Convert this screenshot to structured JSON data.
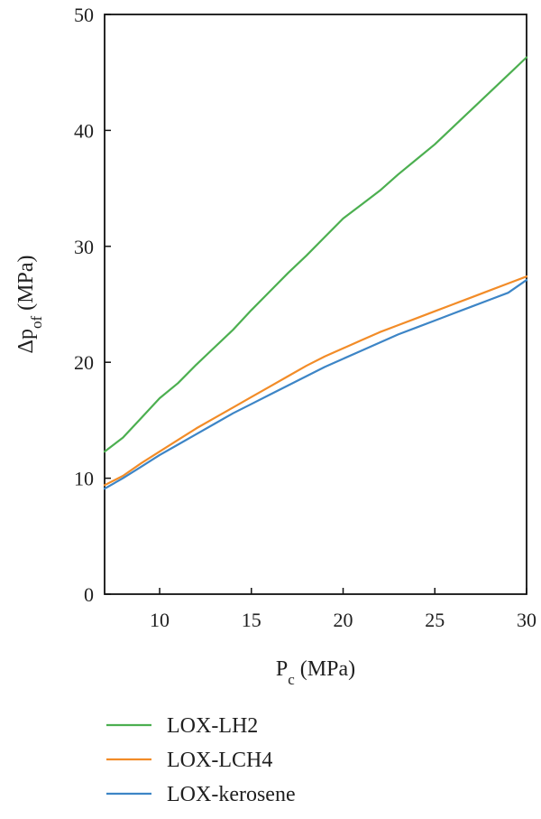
{
  "chart_data": {
    "type": "line",
    "xlabel": {
      "main": "P",
      "sub": "c",
      "unit": " (MPa)"
    },
    "ylabel": {
      "prefix": "Δp",
      "sub": "of",
      "unit": " (MPa)"
    },
    "xlim": [
      7,
      30
    ],
    "ylim": [
      0,
      50
    ],
    "x_ticks": [
      10,
      15,
      20,
      25,
      30
    ],
    "y_ticks": [
      0,
      10,
      20,
      30,
      40,
      50
    ],
    "grid": false,
    "legend_position": "bottom-left",
    "series": [
      {
        "name": "LOX-LH2",
        "color": "#4caf50",
        "points": [
          [
            7,
            12.3
          ],
          [
            8,
            13.5
          ],
          [
            9,
            15.2
          ],
          [
            10,
            16.9
          ],
          [
            11,
            18.2
          ],
          [
            12,
            19.8
          ],
          [
            13,
            21.3
          ],
          [
            14,
            22.8
          ],
          [
            15,
            24.5
          ],
          [
            16,
            26.1
          ],
          [
            17,
            27.7
          ],
          [
            18,
            29.2
          ],
          [
            19,
            30.8
          ],
          [
            20,
            32.4
          ],
          [
            21,
            33.6
          ],
          [
            22,
            34.8
          ],
          [
            23,
            36.2
          ],
          [
            24,
            37.5
          ],
          [
            25,
            38.8
          ],
          [
            26,
            40.3
          ],
          [
            27,
            41.8
          ],
          [
            28,
            43.3
          ],
          [
            29,
            44.8
          ],
          [
            30,
            46.3
          ]
        ]
      },
      {
        "name": "LOX-LCH4",
        "color": "#f28c28",
        "points": [
          [
            7,
            9.4
          ],
          [
            8,
            10.2
          ],
          [
            9,
            11.3
          ],
          [
            10,
            12.3
          ],
          [
            11,
            13.3
          ],
          [
            12,
            14.3
          ],
          [
            13,
            15.2
          ],
          [
            14,
            16.1
          ],
          [
            15,
            17.0
          ],
          [
            16,
            17.9
          ],
          [
            17,
            18.8
          ],
          [
            18,
            19.7
          ],
          [
            19,
            20.5
          ],
          [
            20,
            21.2
          ],
          [
            21,
            21.9
          ],
          [
            22,
            22.6
          ],
          [
            23,
            23.2
          ],
          [
            24,
            23.8
          ],
          [
            25,
            24.4
          ],
          [
            26,
            25.0
          ],
          [
            27,
            25.6
          ],
          [
            28,
            26.2
          ],
          [
            29,
            26.8
          ],
          [
            30,
            27.4
          ]
        ]
      },
      {
        "name": "LOX-kerosene",
        "color": "#3d85c6",
        "points": [
          [
            7,
            9.1
          ],
          [
            8,
            10.0
          ],
          [
            9,
            11.0
          ],
          [
            10,
            12.0
          ],
          [
            11,
            12.9
          ],
          [
            12,
            13.8
          ],
          [
            13,
            14.7
          ],
          [
            14,
            15.6
          ],
          [
            15,
            16.4
          ],
          [
            16,
            17.2
          ],
          [
            17,
            18.0
          ],
          [
            18,
            18.8
          ],
          [
            19,
            19.6
          ],
          [
            20,
            20.3
          ],
          [
            21,
            21.0
          ],
          [
            22,
            21.7
          ],
          [
            23,
            22.4
          ],
          [
            24,
            23.0
          ],
          [
            25,
            23.6
          ],
          [
            26,
            24.2
          ],
          [
            27,
            24.8
          ],
          [
            28,
            25.4
          ],
          [
            29,
            26.0
          ],
          [
            30,
            27.1
          ]
        ]
      }
    ]
  }
}
